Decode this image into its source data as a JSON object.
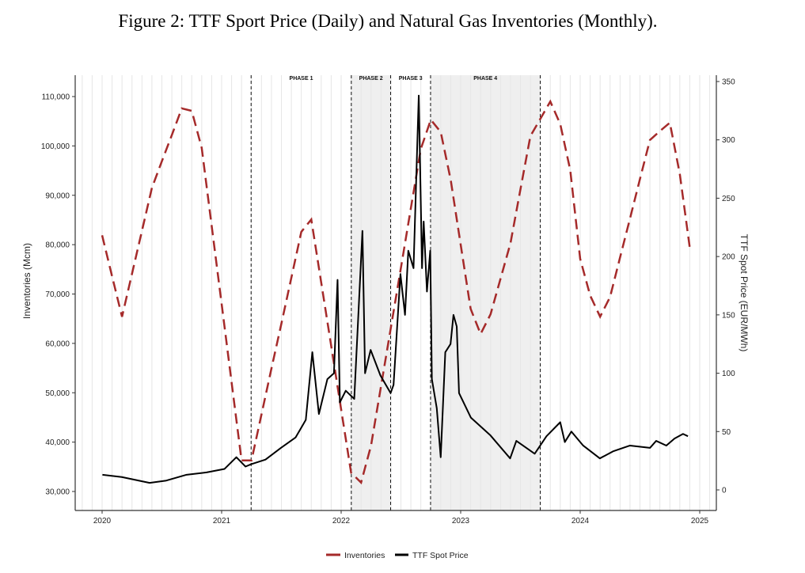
{
  "figure_title": "Figure 2: TTF Sport Price (Daily) and Natural Gas Inventories (Monthly).",
  "chart_data": {
    "type": "line",
    "title": "Figure 2: TTF Sport Price (Daily) and Natural Gas Inventories (Monthly).",
    "xlabel": "",
    "ylabel_left": "Inventories (Mcm)",
    "ylabel_right": "TTF Spot Price (EUR/MWh)",
    "x_ticks": [
      "2020",
      "2021",
      "2022",
      "2023",
      "2024",
      "2025"
    ],
    "y_left_ticks": [
      "30,000",
      "40,000",
      "50,000",
      "60,000",
      "70,000",
      "80,000",
      "90,000",
      "100,000",
      "110,000"
    ],
    "y_right_ticks": [
      "0",
      "50",
      "100",
      "150",
      "200",
      "250",
      "300",
      "350"
    ],
    "y_left_range": [
      30000,
      110000
    ],
    "y_right_range": [
      0,
      350
    ],
    "x_range": [
      "2020-01",
      "2025-01"
    ],
    "grid": "monthly vertical lines",
    "legend_position": "bottom",
    "phases": [
      {
        "label": "PHASE 1",
        "start": "2021-04-01",
        "end": "2022-02-01",
        "shaded": false
      },
      {
        "label": "PHASE 2",
        "start": "2022-02-01",
        "end": "2022-06-01",
        "shaded": true
      },
      {
        "label": "PHASE 3",
        "start": "2022-06-01",
        "end": "2022-10-01",
        "shaded": false
      },
      {
        "label": "PHASE 4",
        "start": "2022-10-01",
        "end": "2023-09-01",
        "shaded": true
      }
    ],
    "series": [
      {
        "name": "Inventories",
        "axis": "left",
        "color": "#a52a2a",
        "style": "dashed",
        "start_month": "2020-01",
        "values": [
          81900,
          73600,
          65400,
          74100,
          82800,
          91500,
          96900,
          102200,
          107600,
          107100,
          99600,
          83800,
          68000,
          52100,
          36300,
          36300,
          45600,
          54900,
          64000,
          73300,
          82600,
          85100,
          72300,
          59500,
          46600,
          33800,
          31800,
          39300,
          51300,
          63300,
          75300,
          87400,
          99400,
          105300,
          102800,
          93100,
          80000,
          67000,
          61900,
          65900,
          73100,
          80300,
          91200,
          102000,
          105500,
          109000,
          104400,
          95100,
          77100,
          69700,
          65400,
          69400,
          77400,
          85300,
          93300,
          101200,
          103000,
          104700,
          94300,
          79400
        ]
      },
      {
        "name": "TTF Spot Price",
        "axis": "right",
        "color": "#000000",
        "style": "solid",
        "points": [
          [
            "2020-01-02",
            13
          ],
          [
            "2020-03-01",
            11
          ],
          [
            "2020-05-25",
            6
          ],
          [
            "2020-07-15",
            8
          ],
          [
            "2020-09-15",
            13
          ],
          [
            "2020-11-15",
            15
          ],
          [
            "2021-01-10",
            18
          ],
          [
            "2021-02-15",
            28
          ],
          [
            "2021-03-15",
            20
          ],
          [
            "2021-04-01",
            22
          ],
          [
            "2021-05-15",
            26
          ],
          [
            "2021-07-01",
            36
          ],
          [
            "2021-08-15",
            45
          ],
          [
            "2021-09-15",
            60
          ],
          [
            "2021-10-05",
            118
          ],
          [
            "2021-10-25",
            65
          ],
          [
            "2021-11-20",
            95
          ],
          [
            "2021-12-10",
            100
          ],
          [
            "2021-12-21",
            180
          ],
          [
            "2021-12-28",
            75
          ],
          [
            "2022-01-15",
            85
          ],
          [
            "2022-02-10",
            78
          ],
          [
            "2022-03-07",
            222
          ],
          [
            "2022-03-15",
            100
          ],
          [
            "2022-04-01",
            120
          ],
          [
            "2022-05-01",
            98
          ],
          [
            "2022-06-01",
            83
          ],
          [
            "2022-06-10",
            90
          ],
          [
            "2022-07-01",
            185
          ],
          [
            "2022-07-15",
            150
          ],
          [
            "2022-07-25",
            205
          ],
          [
            "2022-08-10",
            190
          ],
          [
            "2022-08-26",
            338
          ],
          [
            "2022-09-05",
            190
          ],
          [
            "2022-09-10",
            230
          ],
          [
            "2022-09-20",
            170
          ],
          [
            "2022-09-30",
            205
          ],
          [
            "2022-10-05",
            95
          ],
          [
            "2022-10-20",
            70
          ],
          [
            "2022-11-01",
            28
          ],
          [
            "2022-11-15",
            118
          ],
          [
            "2022-12-01",
            125
          ],
          [
            "2022-12-10",
            150
          ],
          [
            "2022-12-20",
            140
          ],
          [
            "2022-12-27",
            83
          ],
          [
            "2023-02-01",
            62
          ],
          [
            "2023-04-01",
            47
          ],
          [
            "2023-06-01",
            27
          ],
          [
            "2023-06-20",
            42
          ],
          [
            "2023-08-15",
            31
          ],
          [
            "2023-09-20",
            46
          ],
          [
            "2023-11-01",
            58
          ],
          [
            "2023-11-15",
            41
          ],
          [
            "2023-12-05",
            50
          ],
          [
            "2024-01-10",
            38
          ],
          [
            "2024-03-01",
            27
          ],
          [
            "2024-04-10",
            33
          ],
          [
            "2024-06-01",
            38
          ],
          [
            "2024-08-01",
            36
          ],
          [
            "2024-08-20",
            42
          ],
          [
            "2024-09-20",
            38
          ],
          [
            "2024-10-15",
            44
          ],
          [
            "2024-11-10",
            48
          ],
          [
            "2024-11-25",
            46
          ]
        ]
      }
    ]
  }
}
